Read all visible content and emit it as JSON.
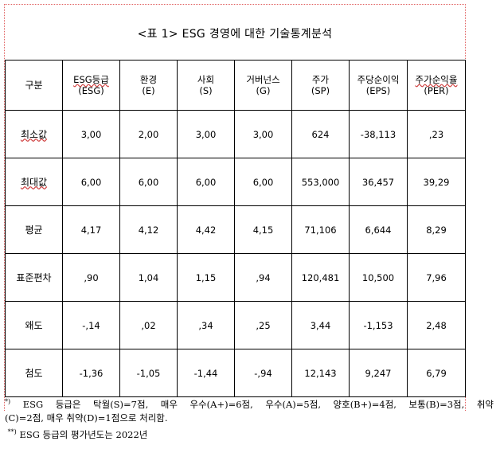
{
  "title": "<표 1> ESG 경영에 대한 기술통계분석",
  "table": {
    "header": [
      {
        "line1": "구분",
        "line2": ""
      },
      {
        "line1": "ESG등급",
        "line2": "(ESG)"
      },
      {
        "line1": "환경",
        "line2": "(E)"
      },
      {
        "line1": "사회",
        "line2": "(S)"
      },
      {
        "line1": "거버넌스",
        "line2": "(G)"
      },
      {
        "line1": "주가",
        "line2": "(SP)"
      },
      {
        "line1": "주당순이익",
        "line2": "(EPS)"
      },
      {
        "line1": "주가순익율",
        "line2": "(PER)"
      }
    ],
    "rows": [
      {
        "label": "최소값",
        "values": [
          "3,00",
          "2,00",
          "3,00",
          "3,00",
          "624",
          "-38,113",
          ",23"
        ]
      },
      {
        "label": "최대값",
        "values": [
          "6,00",
          "6,00",
          "6,00",
          "6,00",
          "553,000",
          "36,457",
          "39,29"
        ]
      },
      {
        "label": "평균",
        "values": [
          "4,17",
          "4,12",
          "4,42",
          "4,15",
          "71,106",
          "6,644",
          "8,29"
        ]
      },
      {
        "label": "표준편차",
        "values": [
          ",90",
          "1,04",
          "1,15",
          ",94",
          "120,481",
          "10,500",
          "7,96"
        ]
      },
      {
        "label": "왜도",
        "values": [
          "-,14",
          ",02",
          ",34",
          ",25",
          "3,44",
          "-1,153",
          "2,48"
        ]
      },
      {
        "label": "첨도",
        "values": [
          "-1,36",
          "-1,05",
          "-1,44",
          "-,94",
          "12,143",
          "9,247",
          "6,79"
        ]
      }
    ]
  },
  "notes": {
    "n1_mark": "*)",
    "n1_line1": "ESG 등급은 탁월(S)=7점, 매우 우수(A+)=6점, 우수(A)=5점, 양호(B+)=4점, 보통(B)=3점, 취약",
    "n1_line2": "(C)=2점, 매우 취약(D)=1점으로 처리함.",
    "n2_mark": "**)",
    "n2_text": "ESG 등급의 평가년도는 2022년"
  }
}
